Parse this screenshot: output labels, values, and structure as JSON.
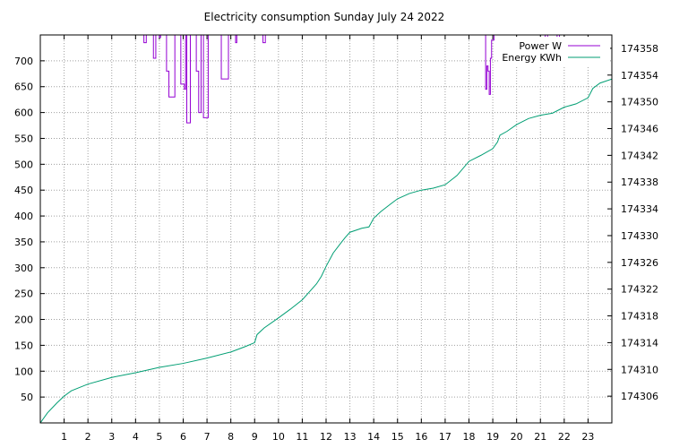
{
  "chart_data": {
    "type": "line",
    "title": "Electricity consumption Sunday July 24 2022",
    "xlabel": "",
    "ylabel": "",
    "y2label": "",
    "xlim": [
      0,
      24
    ],
    "ylim": [
      0,
      750
    ],
    "y2lim": [
      174302,
      174360
    ],
    "grid": true,
    "legend_position": "top-right",
    "x_ticks": [
      1,
      2,
      3,
      4,
      5,
      6,
      7,
      8,
      9,
      10,
      11,
      12,
      13,
      14,
      15,
      16,
      17,
      18,
      19,
      20,
      21,
      22,
      23
    ],
    "x_tick_labels": [
      "1",
      "2",
      "3",
      "4",
      "5",
      "6",
      "7",
      "8",
      "9",
      "10",
      "11",
      "12",
      "13",
      "14",
      "15",
      "16",
      "17",
      "18",
      "19",
      "20",
      "21",
      "22",
      "23"
    ],
    "y_ticks": [
      50,
      100,
      150,
      200,
      250,
      300,
      350,
      400,
      450,
      500,
      550,
      600,
      650,
      700
    ],
    "y_tick_labels": [
      "50",
      "100",
      "150",
      "200",
      "250",
      "300",
      "350",
      "400",
      "450",
      "500",
      "550",
      "600",
      "650",
      "700"
    ],
    "y2_ticks": [
      174306,
      174310,
      174314,
      174318,
      174322,
      174326,
      174330,
      174334,
      174338,
      174342,
      174346,
      174350,
      174354,
      174358
    ],
    "y2_tick_labels": [
      "174306",
      "174310",
      "174314",
      "174318",
      "174322",
      "174326",
      "174330",
      "174334",
      "174338",
      "174342",
      "174346",
      "174350",
      "174354",
      "174358"
    ],
    "colors": {
      "power": "#9400d3",
      "energy": "#009e73"
    },
    "series": [
      {
        "name": "Power W",
        "axis": "y1",
        "style": "steps",
        "x": [
          4.35,
          4.45,
          4.75,
          4.85,
          5.0,
          5.05,
          5.3,
          5.4,
          5.45,
          5.65,
          5.9,
          6.05,
          6.1,
          6.15,
          6.25,
          6.3,
          6.4,
          6.55,
          6.65,
          6.75,
          6.85,
          6.95,
          7.05,
          7.1,
          7.6,
          7.7,
          7.9,
          8.2,
          8.25,
          9.35,
          9.45,
          18.7,
          18.75,
          18.8,
          18.85,
          18.9,
          18.95,
          19.05,
          19.1,
          21.2,
          21.3,
          21.7,
          21.8
        ],
        "y": [
          735,
          750,
          705,
          750,
          745,
          750,
          680,
          630,
          630,
          750,
          655,
          645,
          750,
          580,
          580,
          750,
          750,
          680,
          600,
          750,
          590,
          590,
          750,
          750,
          665,
          665,
          750,
          735,
          750,
          735,
          750,
          645,
          690,
          680,
          635,
          705,
          740,
          750,
          750,
          740,
          750,
          740,
          750
        ]
      },
      {
        "name": "Energy KWh",
        "axis": "y2",
        "style": "line",
        "x": [
          0,
          0.3,
          0.7,
          1.0,
          1.3,
          2.0,
          3.0,
          4.0,
          5.0,
          6.0,
          7.0,
          8.0,
          8.6,
          9.0,
          9.1,
          9.4,
          10.0,
          10.5,
          11.0,
          11.3,
          11.6,
          11.8,
          12.0,
          12.3,
          12.6,
          12.8,
          13.0,
          13.5,
          13.8,
          14.0,
          14.3,
          14.7,
          15.0,
          15.5,
          16.0,
          16.5,
          17.0,
          17.5,
          18.0,
          18.5,
          19.0,
          19.2,
          19.3,
          19.6,
          20.0,
          20.5,
          21.0,
          21.5,
          22.0,
          22.5,
          23.0,
          23.2,
          23.5,
          24.0
        ],
        "y": [
          174302,
          174303.5,
          174305,
          174306,
          174306.8,
          174307.8,
          174308.8,
          174309.5,
          174310.3,
          174310.9,
          174311.7,
          174312.6,
          174313.4,
          174314,
          174315.2,
          174316.2,
          174317.7,
          174319,
          174320.4,
          174321.6,
          174322.8,
          174323.9,
          174325.4,
          174327.4,
          174328.8,
          174329.7,
          174330.5,
          174331.1,
          174331.3,
          174332.6,
          174333.6,
          174334.7,
          174335.5,
          174336.3,
          174336.8,
          174337.1,
          174337.6,
          174339,
          174341.1,
          174342,
          174343,
          174344,
          174345,
          174345.6,
          174346.6,
          174347.5,
          174348,
          174348.3,
          174349.2,
          174349.7,
          174350.6,
          174352,
          174352.8,
          174353.4
        ]
      }
    ]
  }
}
